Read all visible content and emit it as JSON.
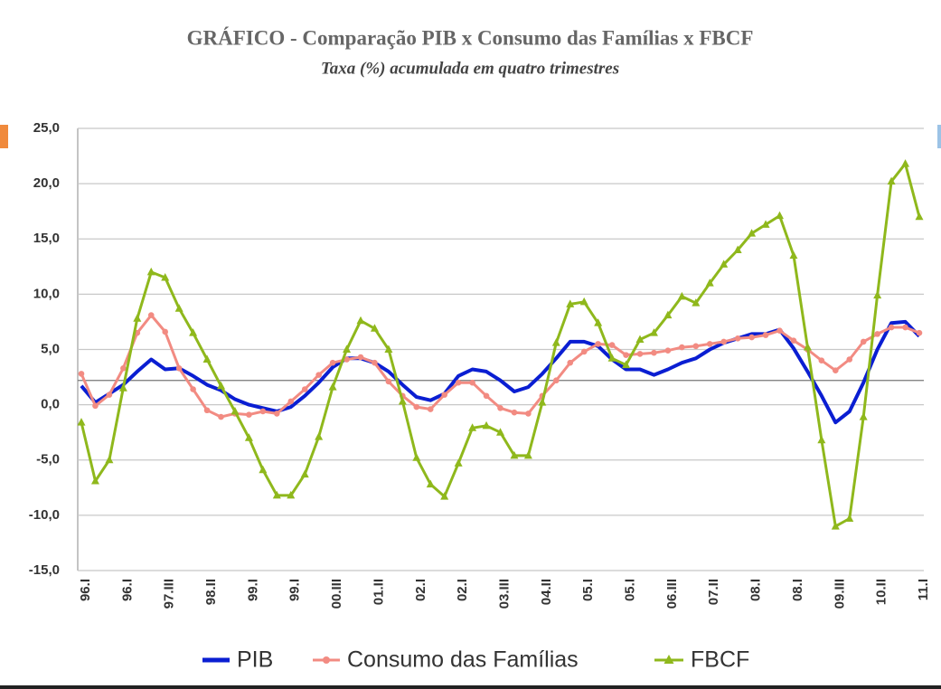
{
  "chart_data": {
    "type": "line",
    "title": "GRÁFICO - Comparação PIB x Consumo das Famílias x FBCF",
    "subtitle": "Taxa (%) acumulada em quatro trimestres",
    "categories": [
      "96.I",
      null,
      null,
      "96.I",
      null,
      null,
      "97.III",
      null,
      null,
      "98.II",
      null,
      null,
      "99.I",
      null,
      null,
      "99.I",
      null,
      null,
      "00.III",
      null,
      null,
      "01.II",
      null,
      null,
      "02.I",
      null,
      null,
      "02.I",
      null,
      null,
      "03.III",
      null,
      null,
      "04.II",
      null,
      null,
      "05.I",
      null,
      null,
      "05.I",
      null,
      null,
      "06.III",
      null,
      null,
      "07.II",
      null,
      null,
      "08.I",
      null,
      null,
      "08.I",
      null,
      null,
      "09.III",
      null,
      null,
      "10.II",
      null,
      null,
      "11.I"
    ],
    "series": [
      {
        "name": "PIB",
        "color": "#0a1ed2",
        "marker": "none",
        "values": [
          1.7,
          0.2,
          1.0,
          1.8,
          3.0,
          4.1,
          3.2,
          3.3,
          2.6,
          1.8,
          1.3,
          0.5,
          0.0,
          -0.3,
          -0.6,
          -0.2,
          0.8,
          2.0,
          3.4,
          4.2,
          4.2,
          3.8,
          3.0,
          1.8,
          0.7,
          0.4,
          1.0,
          2.6,
          3.2,
          3.0,
          2.2,
          1.2,
          1.6,
          2.8,
          4.2,
          5.7,
          5.7,
          5.3,
          4.1,
          3.2,
          3.2,
          2.7,
          3.2,
          3.8,
          4.2,
          5.0,
          5.6,
          6.0,
          6.4,
          6.4,
          6.8,
          5.1,
          3.0,
          0.8,
          -1.6,
          -0.6,
          2.0,
          5.0,
          7.4,
          7.5,
          6.2
        ]
      },
      {
        "name": "Consumo das Famílias",
        "color": "#f28b82",
        "marker": "circle",
        "values": [
          2.8,
          -0.1,
          0.9,
          3.3,
          6.5,
          8.1,
          6.6,
          3.3,
          1.4,
          -0.5,
          -1.1,
          -0.8,
          -0.9,
          -0.6,
          -0.8,
          0.3,
          1.4,
          2.7,
          3.8,
          4.1,
          4.3,
          3.8,
          2.1,
          0.8,
          -0.2,
          -0.4,
          0.9,
          2.0,
          2.0,
          0.8,
          -0.3,
          -0.7,
          -0.8,
          0.8,
          2.2,
          3.8,
          4.8,
          5.5,
          5.4,
          4.5,
          4.6,
          4.7,
          4.9,
          5.2,
          5.3,
          5.5,
          5.7,
          6.0,
          6.1,
          6.3,
          6.7,
          5.8,
          5.0,
          4.0,
          3.1,
          4.1,
          5.7,
          6.4,
          7.0,
          7.0,
          6.5
        ]
      },
      {
        "name": "FBCF",
        "color": "#8fb81c",
        "marker": "triangle",
        "values": [
          -1.6,
          -6.9,
          -5.0,
          1.5,
          7.8,
          12.0,
          11.5,
          8.7,
          6.5,
          4.1,
          1.7,
          -0.6,
          -3.0,
          -5.9,
          -8.2,
          -8.2,
          -6.3,
          -2.9,
          1.6,
          5.0,
          7.6,
          6.9,
          5.0,
          0.3,
          -4.8,
          -7.2,
          -8.3,
          -5.3,
          -2.1,
          -1.9,
          -2.5,
          -4.6,
          -4.6,
          0.2,
          5.6,
          9.1,
          9.3,
          7.4,
          4.2,
          3.6,
          5.9,
          6.5,
          8.1,
          9.8,
          9.2,
          11.0,
          12.7,
          14.0,
          15.5,
          16.3,
          17.1,
          13.5,
          5.2,
          -3.2,
          -11.0,
          -10.3,
          -1.1,
          9.9,
          20.2,
          21.8,
          17.0
        ]
      }
    ],
    "reference_line": 2.2,
    "ylim": [
      -15,
      25
    ],
    "yticks": [
      {
        "value": -15,
        "label": "-15,0"
      },
      {
        "value": -10,
        "label": "-10,0"
      },
      {
        "value": -5,
        "label": "-5,0"
      },
      {
        "value": 0,
        "label": "0,0"
      },
      {
        "value": 5,
        "label": "5,0"
      },
      {
        "value": 10,
        "label": "10,0"
      },
      {
        "value": 15,
        "label": "15,0"
      },
      {
        "value": 20,
        "label": "20,0"
      },
      {
        "value": 25,
        "label": "25,0"
      }
    ],
    "grid": true,
    "legend": "bottom"
  }
}
